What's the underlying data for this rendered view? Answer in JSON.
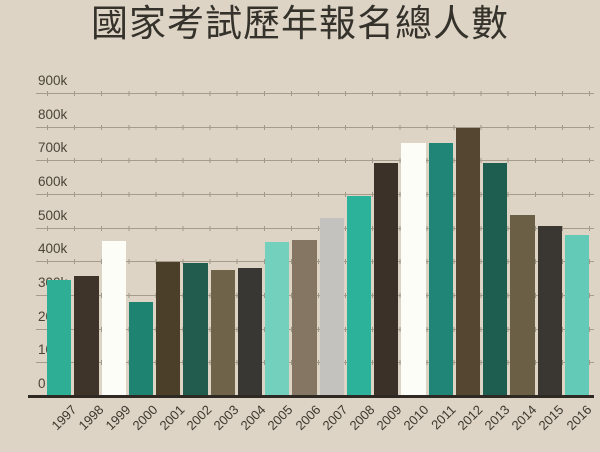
{
  "title": "國家考試歷年報名總人數",
  "chart_data": {
    "type": "bar",
    "title": "國家考試歷年報名總人數",
    "categories": [
      "1997",
      "1998",
      "1999",
      "2000",
      "2001",
      "2002",
      "2003",
      "2004",
      "2005",
      "2006",
      "2007",
      "2008",
      "2009",
      "2010",
      "2011",
      "2012",
      "2013",
      "2014",
      "2015",
      "2016"
    ],
    "values": [
      344000,
      357000,
      462000,
      279000,
      397000,
      395000,
      374000,
      381000,
      458000,
      463000,
      528000,
      593000,
      693000,
      752000,
      753000,
      795000,
      692000,
      537000,
      505000,
      478000
    ],
    "bar_colors": [
      "#2fae96",
      "#3e342a",
      "#fdfdf8",
      "#1e8471",
      "#4c3f2a",
      "#215c4f",
      "#6f6349",
      "#393733",
      "#72d0bd",
      "#857663",
      "#c4c2be",
      "#2cb29a",
      "#3b3128",
      "#fdfdf8",
      "#208577",
      "#544630",
      "#1e5e51",
      "#6b6046",
      "#3a3733",
      "#62cab6"
    ],
    "xlabel": "",
    "ylabel": "",
    "ylim": [
      0,
      900000
    ],
    "yticks": [
      0,
      100000,
      200000,
      300000,
      400000,
      500000,
      600000,
      700000,
      800000,
      900000
    ],
    "ytick_labels": [
      "0",
      "100k",
      "200k",
      "300k",
      "400k",
      "500k",
      "600k",
      "700k",
      "800k",
      "900k"
    ],
    "grid": true,
    "legend": "none",
    "background_color": "#ddd4c5",
    "gridline_color": "#a59c8d",
    "axis_line_color": "#2e2a23",
    "title_color": "#35322b",
    "tick_label_color": "#4a4437"
  }
}
